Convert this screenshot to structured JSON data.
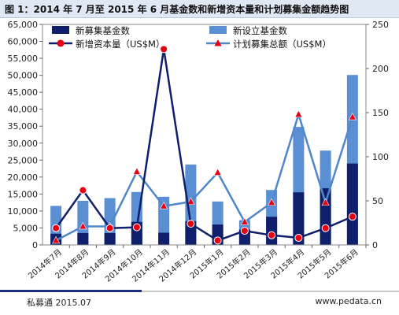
{
  "title": "图 1：2014 年 7 月至 2015 年 6 月基金数和新增资本量和计划募集金额趋势图",
  "footer": {
    "left": "私募通 2015.07",
    "right": "www.pedata.cn"
  },
  "colors": {
    "new_funds": "#0f1f6b",
    "established_funds": "#5b8fd4",
    "new_capital": "#0f1f6b",
    "new_capital_marker": "#e60012",
    "planned": "#4f86cc",
    "planned_marker": "#e60012"
  },
  "chart_data": {
    "type": "bar",
    "categories": [
      "2014年7月",
      "2014年8月",
      "2014年9月",
      "2014年10月",
      "2014年11月",
      "2014年12月",
      "2015年1月",
      "2015年2月",
      "2015年3月",
      "2015年4月",
      "2015年5月",
      "2015年6月"
    ],
    "left_axis": {
      "ylim": [
        0,
        65000
      ],
      "ticks": [
        "0",
        "5,000",
        "10,000",
        "15,000",
        "20,000",
        "25,000",
        "30,000",
        "35,000",
        "40,000",
        "45,000",
        "50,000",
        "55,000",
        "60,000",
        "65,000"
      ]
    },
    "right_axis": {
      "ylim": [
        0,
        250
      ],
      "ticks": [
        "0",
        "50",
        "100",
        "150",
        "200",
        "250"
      ]
    },
    "series": [
      {
        "name": "新募集基金数",
        "kind": "bar",
        "axis": "left",
        "overlay": true,
        "values": [
          3300,
          3500,
          3500,
          6800,
          3600,
          7000,
          6000,
          4500,
          8300,
          15500,
          16700,
          24000
        ]
      },
      {
        "name": "新设立基金数",
        "kind": "bar",
        "axis": "left",
        "overlay": false,
        "values": [
          11500,
          13000,
          13800,
          15600,
          14200,
          23700,
          12800,
          7300,
          16200,
          34800,
          27800,
          50100
        ]
      },
      {
        "name": "新增资本量（US$M）",
        "kind": "line",
        "axis": "right",
        "values": [
          19,
          62,
          19,
          20,
          222,
          24,
          5,
          16,
          11,
          8,
          19,
          32
        ]
      },
      {
        "name": "计划募集总额（US$M）",
        "kind": "line",
        "axis": "right",
        "values": [
          5,
          21,
          21,
          83,
          44,
          49,
          82,
          26,
          48,
          148,
          48,
          145
        ]
      }
    ],
    "legend_placement": "top"
  }
}
